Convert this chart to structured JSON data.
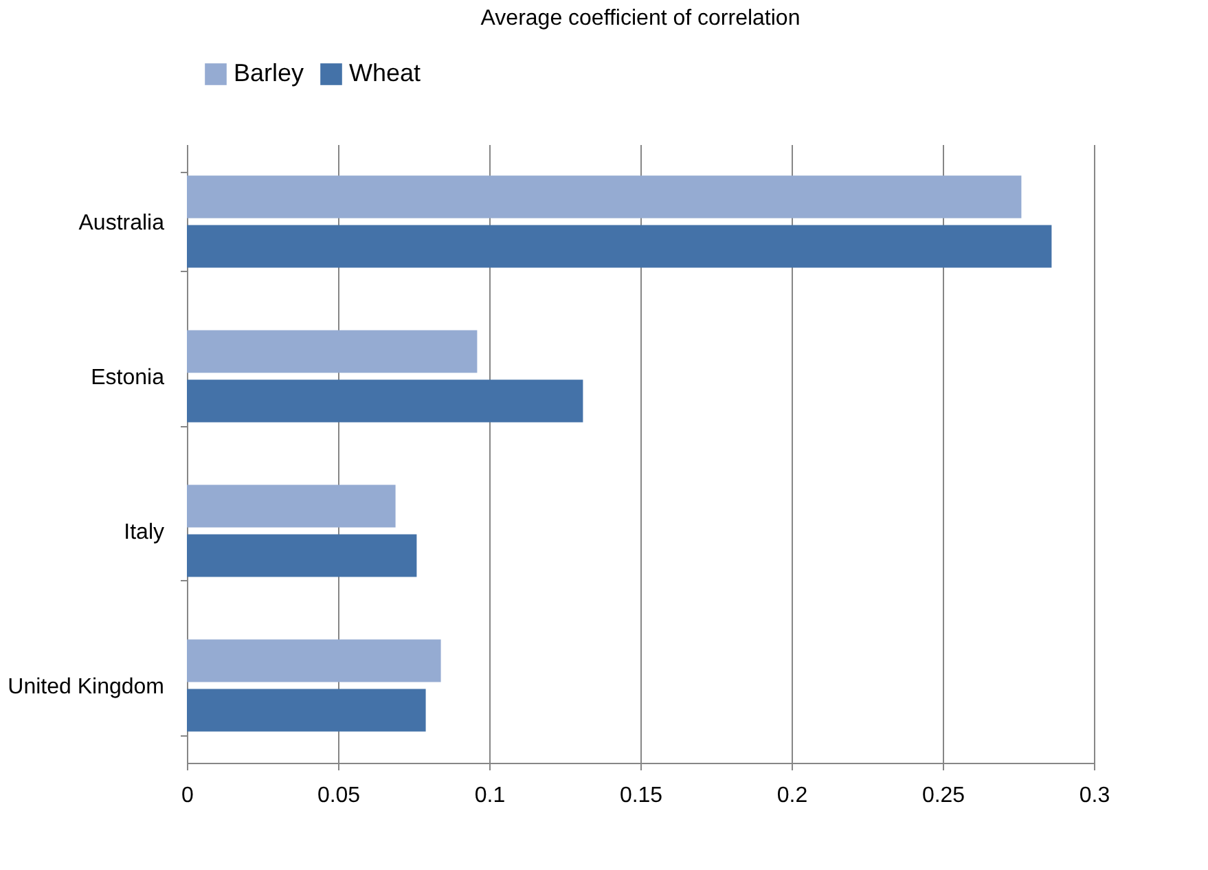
{
  "chart_data": {
    "type": "bar",
    "orientation": "horizontal",
    "title": "Average coefficient of correlation",
    "categories": [
      "Australia",
      "Estonia",
      "Italy",
      "United Kingdom"
    ],
    "series": [
      {
        "name": "Barley",
        "color": "#95abd2",
        "values": [
          0.276,
          0.096,
          0.069,
          0.084
        ]
      },
      {
        "name": "Wheat",
        "color": "#4472a8",
        "values": [
          0.286,
          0.131,
          0.076,
          0.079
        ]
      }
    ],
    "xlim": [
      0,
      0.3
    ],
    "xticks": [
      0,
      0.05,
      0.1,
      0.15,
      0.2,
      0.25,
      0.3
    ],
    "grid": "x",
    "legend": "top"
  }
}
